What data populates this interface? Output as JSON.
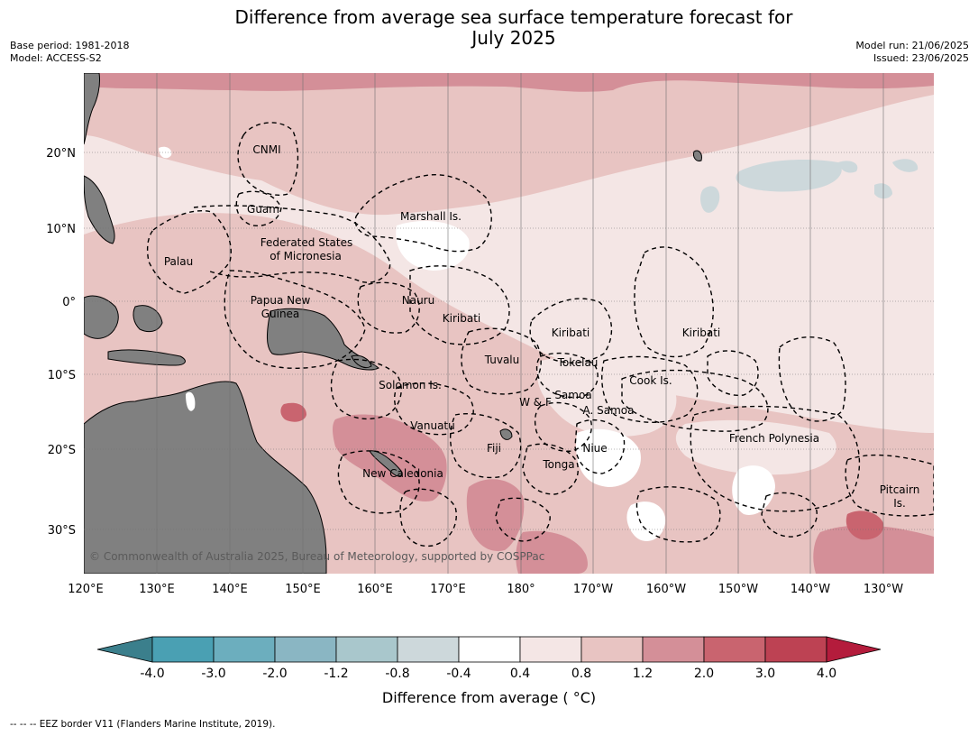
{
  "title_line1": "Difference from average sea surface temperature forecast for",
  "title_line2": "July 2025",
  "meta": {
    "base_period": "Base period: 1981-2018",
    "model": "Model: ACCESS-S2",
    "model_run": "Model run: 21/06/2025",
    "issued": "Issued: 23/06/2025"
  },
  "map": {
    "lat_labels": [
      "20°N",
      "10°N",
      "0°",
      "10°S",
      "20°S",
      "30°S"
    ],
    "lon_labels": [
      "120°E",
      "130°E",
      "140°E",
      "150°E",
      "160°E",
      "170°E",
      "180°",
      "170°W",
      "160°W",
      "150°W",
      "140°W",
      "130°W"
    ],
    "land_color": "#808080",
    "eez_border_style": "dashed black",
    "copyright": "© Commonwealth of Australia 2025, Bureau of Meteorology, supported by COSPPac",
    "places": [
      {
        "name": "cnmi",
        "text": "CNMI"
      },
      {
        "name": "guam",
        "text": "Guam"
      },
      {
        "name": "marshall-is",
        "text": "Marshall Is."
      },
      {
        "name": "fsm-1",
        "text": "Federated States"
      },
      {
        "name": "fsm-2",
        "text": "of Micronesia"
      },
      {
        "name": "palau",
        "text": "Palau"
      },
      {
        "name": "png-1",
        "text": "Papua New"
      },
      {
        "name": "png-2",
        "text": "Guinea"
      },
      {
        "name": "nauru",
        "text": "Nauru"
      },
      {
        "name": "kiribati-w",
        "text": "Kiribati"
      },
      {
        "name": "kiribati-c",
        "text": "Kiribati"
      },
      {
        "name": "kiribati-e",
        "text": "Kiribati"
      },
      {
        "name": "tuvalu",
        "text": "Tuvalu"
      },
      {
        "name": "tokelau",
        "text": "Tokelau"
      },
      {
        "name": "cook-is",
        "text": "Cook Is."
      },
      {
        "name": "solomon-is",
        "text": "Solomon Is."
      },
      {
        "name": "w-and-f",
        "text": "W & F"
      },
      {
        "name": "samoa",
        "text": "Samoa"
      },
      {
        "name": "a-samoa",
        "text": "A. Samoa"
      },
      {
        "name": "vanuatu",
        "text": "Vanuatu"
      },
      {
        "name": "fiji",
        "text": "Fiji"
      },
      {
        "name": "niue",
        "text": "Niue"
      },
      {
        "name": "french-polynesia",
        "text": "French Polynesia"
      },
      {
        "name": "tonga",
        "text": "Tonga"
      },
      {
        "name": "new-caledonia",
        "text": "New Caledonia"
      },
      {
        "name": "pitcairn-1",
        "text": "Pitcairn"
      },
      {
        "name": "pitcairn-2",
        "text": "Is."
      }
    ]
  },
  "colorbar": {
    "title": "Difference from average ( °C)",
    "ticks": [
      "-4.0",
      "-3.0",
      "-2.0",
      "-1.2",
      "-0.8",
      "-0.4",
      "0.4",
      "0.8",
      "1.2",
      "2.0",
      "3.0",
      "4.0"
    ],
    "under_color": "#3b7f8c",
    "over_color": "#b41c3c",
    "colors": [
      "#4aa0b3",
      "#6caebe",
      "#8ab6c3",
      "#a9c7cc",
      "#cdd8db",
      "#ffffff",
      "#f4e6e5",
      "#e8c4c2",
      "#d48f98",
      "#c9646f",
      "#bd4253"
    ]
  },
  "footnote": "--  --  -- EEZ border V11 (Flanders Marine Institute, 2019)."
}
